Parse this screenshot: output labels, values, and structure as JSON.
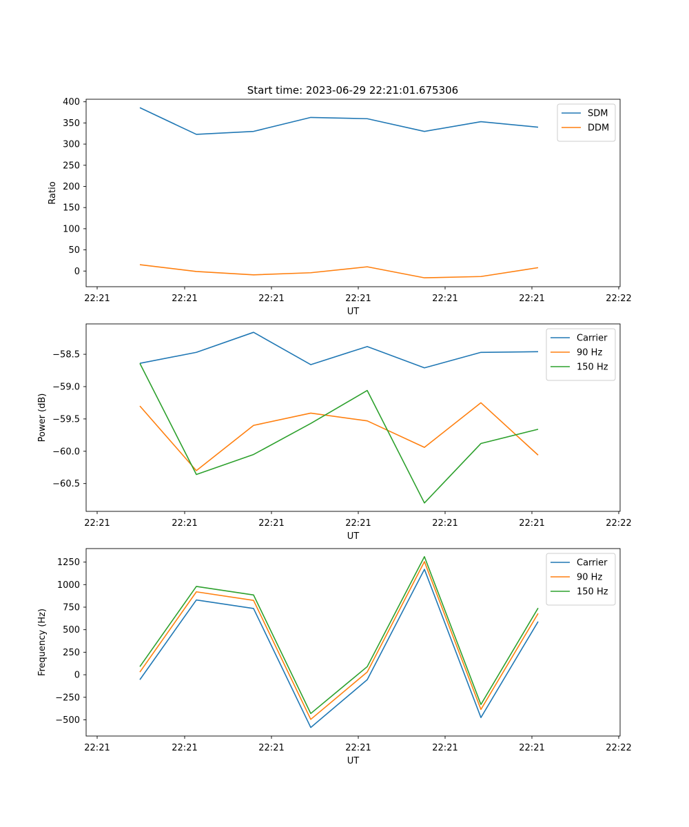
{
  "figure": {
    "title": "Start time: 2023-06-29 22:21:01.675306"
  },
  "chart_data": [
    {
      "type": "line",
      "xlabel": "UT",
      "ylabel": "Ratio",
      "x_tick_labels": [
        "22:21",
        "22:21",
        "22:21",
        "22:21",
        "22:21",
        "22:21",
        "22:22"
      ],
      "yticks": [
        0,
        50,
        100,
        150,
        200,
        250,
        300,
        350,
        400
      ],
      "ylim": [
        -37,
        406
      ],
      "grid": false,
      "legend_placement": "upper right",
      "series": [
        {
          "name": "SDM",
          "color": "#1f77b4",
          "values": [
            386,
            323,
            330,
            363,
            360,
            330,
            353,
            340
          ]
        },
        {
          "name": "DDM",
          "color": "#ff7f0e",
          "values": [
            15,
            -1,
            -9,
            -4,
            10,
            -16,
            -13,
            8
          ]
        }
      ]
    },
    {
      "type": "line",
      "xlabel": "UT",
      "ylabel": "Power (dB)",
      "x_tick_labels": [
        "22:21",
        "22:21",
        "22:21",
        "22:21",
        "22:21",
        "22:21",
        "22:22"
      ],
      "yticks": [
        -60.5,
        -60.0,
        -59.5,
        -59.0,
        -58.5
      ],
      "ytick_labels": [
        "−60.5",
        "−60.0",
        "−59.5",
        "−59.0",
        "−58.5"
      ],
      "ylim": [
        -60.93,
        -58.03
      ],
      "grid": false,
      "legend_placement": "upper right",
      "series": [
        {
          "name": "Carrier",
          "color": "#1f77b4",
          "values": [
            -58.64,
            -58.47,
            -58.16,
            -58.66,
            -58.38,
            -58.71,
            -58.47,
            -58.46
          ]
        },
        {
          "name": "90 Hz",
          "color": "#ff7f0e",
          "values": [
            -59.3,
            -60.3,
            -59.6,
            -59.41,
            -59.53,
            -59.94,
            -59.25,
            -60.06
          ]
        },
        {
          "name": "150 Hz",
          "color": "#2ca02c",
          "values": [
            -58.64,
            -60.36,
            -60.05,
            -59.57,
            -59.06,
            -60.8,
            -59.88,
            -59.66
          ]
        }
      ]
    },
    {
      "type": "line",
      "xlabel": "UT",
      "ylabel": "Frequency (Hz)",
      "x_tick_labels": [
        "22:21",
        "22:21",
        "22:21",
        "22:21",
        "22:21",
        "22:21",
        "22:22"
      ],
      "yticks": [
        -500,
        -250,
        0,
        250,
        500,
        750,
        1000,
        1250
      ],
      "ytick_labels": [
        "−500",
        "−250",
        "0",
        "250",
        "500",
        "750",
        "1000",
        "1250"
      ],
      "ylim": [
        -680,
        1400
      ],
      "grid": false,
      "legend_placement": "upper right",
      "series": [
        {
          "name": "Carrier",
          "color": "#1f77b4",
          "values": [
            -55,
            830,
            735,
            -585,
            -55,
            1170,
            -475,
            590
          ]
        },
        {
          "name": "90 Hz",
          "color": "#ff7f0e",
          "values": [
            30,
            920,
            825,
            -495,
            30,
            1255,
            -385,
            680
          ]
        },
        {
          "name": "150 Hz",
          "color": "#2ca02c",
          "values": [
            90,
            980,
            885,
            -430,
            90,
            1310,
            -330,
            740
          ]
        }
      ]
    }
  ]
}
